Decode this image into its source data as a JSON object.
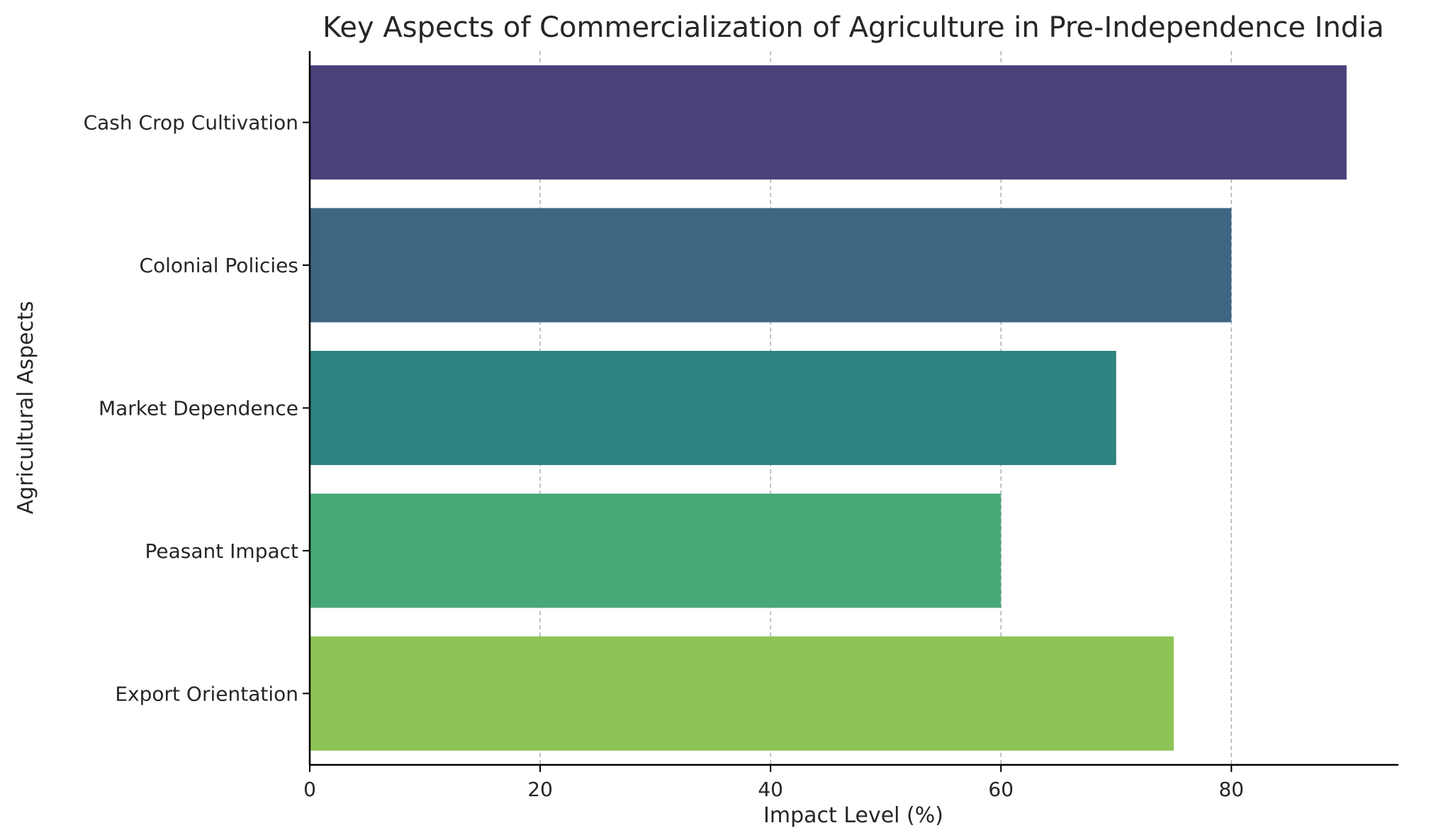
{
  "chart_data": {
    "type": "bar",
    "orientation": "horizontal",
    "title": "Key Aspects of Commercialization of Agriculture in Pre-Independence India",
    "xlabel": "Impact Level (%)",
    "ylabel": "Agricultural Aspects",
    "categories": [
      "Cash Crop Cultivation",
      "Colonial Policies",
      "Market Dependence",
      "Peasant Impact",
      "Export Orientation"
    ],
    "values": [
      90,
      80,
      70,
      60,
      75
    ],
    "colors": [
      "#4b4079",
      "#3e6582",
      "#2e8280",
      "#48a878",
      "#8ec456"
    ],
    "xlim": [
      0,
      94.5
    ],
    "xticks": [
      0,
      20,
      40,
      60,
      80
    ],
    "grid": "x, dashed"
  }
}
